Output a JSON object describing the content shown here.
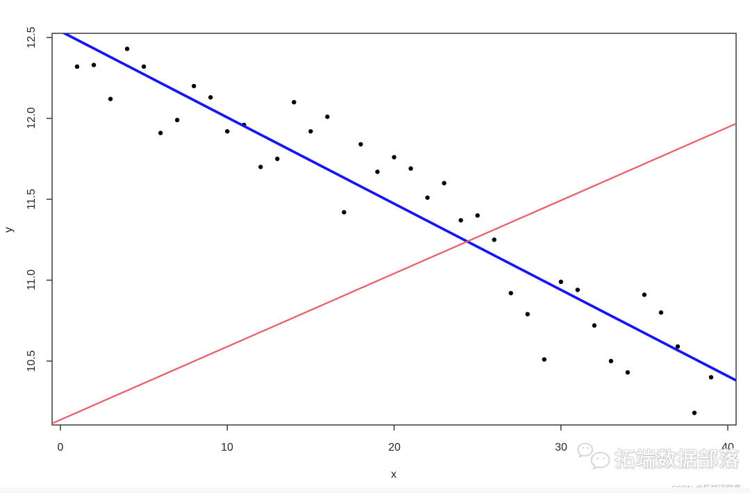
{
  "chart_data": {
    "type": "scatter",
    "title": "",
    "xlabel": "x",
    "ylabel": "y",
    "x_ticks": [
      0,
      10,
      20,
      30,
      40
    ],
    "x_tick_labels": [
      "0",
      "10",
      "20",
      "30",
      "40"
    ],
    "y_ticks": [
      12.5,
      12.0,
      11.5,
      11.0,
      10.5
    ],
    "y_tick_labels": [
      "12.5",
      "12.0",
      "11.5",
      "11.0",
      "10.5"
    ],
    "xlim": [
      -0.5,
      40.5
    ],
    "ylim": [
      10.1,
      12.53
    ],
    "grid": false,
    "legend": "none",
    "point_color": "#000000",
    "point_radius": 3.2,
    "points": {
      "x": [
        1,
        2,
        3,
        4,
        5,
        6,
        7,
        8,
        9,
        10,
        11,
        12,
        13,
        14,
        15,
        16,
        17,
        18,
        19,
        20,
        21,
        22,
        23,
        24,
        25,
        26,
        27,
        28,
        29,
        30,
        31,
        32,
        33,
        34,
        35,
        36,
        37,
        38,
        39
      ],
      "y": [
        12.32,
        12.33,
        12.12,
        12.43,
        12.32,
        11.91,
        11.99,
        12.2,
        12.13,
        11.92,
        11.96,
        11.7,
        11.75,
        12.1,
        11.92,
        12.01,
        11.42,
        11.84,
        11.67,
        11.76,
        11.69,
        11.51,
        11.6,
        11.37,
        11.4,
        11.25,
        10.92,
        10.79,
        10.51,
        10.99,
        10.94,
        10.72,
        10.5,
        10.43,
        10.91,
        10.8,
        10.59,
        10.18,
        10.4
      ],
      "n": 39
    },
    "lines": [
      {
        "name": "regression-line-blue",
        "color": "#1414ff",
        "slope": -0.0533,
        "intercept": 12.539,
        "width": 3.7
      },
      {
        "name": "reference-line-pink",
        "color": "#ed5f68",
        "slope": 0.0452,
        "intercept": 10.137,
        "width": 2.3
      }
    ],
    "axis_color": "#3a3a3a"
  },
  "watermark": {
    "brand_text": "拓端数据部落",
    "credit_text": "CSDN @拓端研究室",
    "icon": "wechat-icon"
  }
}
